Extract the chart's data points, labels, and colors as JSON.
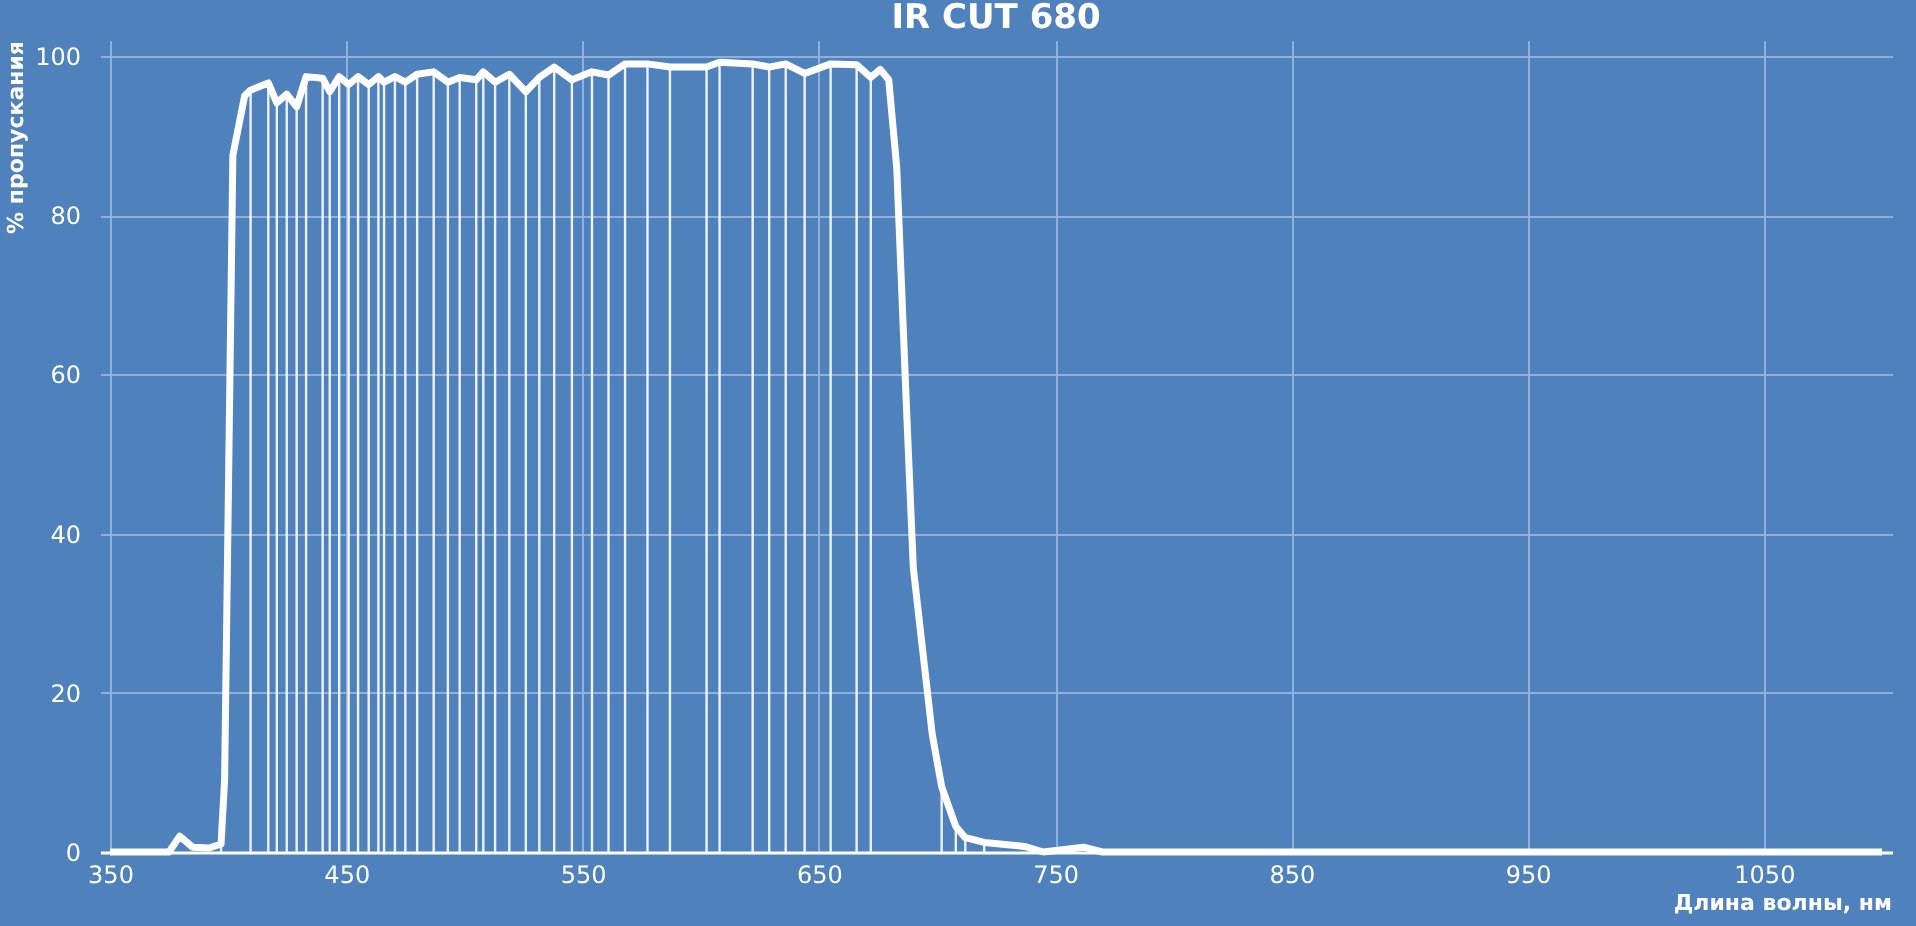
{
  "chart_data": {
    "type": "line",
    "title": "IR CUT 680",
    "xlabel": "Длина волны, нм",
    "ylabel": "% пропускания",
    "xlim": [
      350,
      1100
    ],
    "ylim": [
      0,
      102
    ],
    "xticks": [
      350,
      450,
      550,
      650,
      750,
      850,
      950,
      1050
    ],
    "yticks": [
      0,
      20,
      40,
      60,
      80,
      100
    ],
    "grid": true,
    "series": [
      {
        "type": "bar",
        "color": "#ffffff",
        "x": [
          397,
          409.5,
          417,
          420.6,
          424.8,
          429,
          433,
          440,
          443,
          447,
          451,
          455,
          459.5,
          463.6,
          466,
          470.6,
          475,
          480,
          487,
          493,
          498,
          505,
          508,
          513,
          519,
          526,
          531.7,
          538,
          545.5,
          554,
          561,
          568,
          577.5,
          587,
          602.5,
          608,
          622,
          629,
          636,
          644,
          655,
          666,
          672,
          702,
          708,
          712,
          720
        ],
        "values": [
          1,
          95.7,
          96.6,
          94.1,
          95.2,
          93.6,
          97.4,
          97.2,
          95.5,
          97.4,
          96.4,
          97.4,
          96.4,
          97.4,
          96.7,
          97.4,
          96.7,
          97.7,
          98,
          96.7,
          97.3,
          97,
          98,
          96.7,
          97.7,
          95.5,
          97.3,
          98.6,
          97,
          98,
          97.6,
          99,
          99,
          98.6,
          98.6,
          99.2,
          99,
          98.6,
          99,
          97.8,
          99,
          98.9,
          97.3,
          8.2,
          3.2,
          1.8,
          1.2
        ]
      },
      {
        "type": "line",
        "color": "#ffffff",
        "x": [
          350,
          375,
          379.5,
          385,
          392,
          397,
          398.5,
          402,
          407,
          409.5,
          417,
          420.6,
          424.8,
          429,
          433,
          440,
          443,
          447,
          451,
          455,
          459.5,
          463.6,
          466,
          470.6,
          475,
          480,
          487,
          493,
          498,
          505,
          508,
          513,
          519,
          526,
          531.7,
          538,
          545.5,
          554,
          561,
          568,
          577.5,
          587,
          602.5,
          608,
          622,
          629,
          636,
          644,
          655,
          666,
          672,
          676,
          679.6,
          683,
          687,
          690,
          698,
          702,
          708,
          712,
          720,
          737,
          745,
          762,
          770,
          1100
        ],
        "values": [
          0,
          0,
          2,
          0.6,
          0.5,
          1,
          9,
          87.5,
          95,
          95.7,
          96.6,
          94.1,
          95.2,
          93.6,
          97.4,
          97.2,
          95.5,
          97.4,
          96.4,
          97.4,
          96.4,
          97.4,
          96.7,
          97.4,
          96.7,
          97.7,
          98,
          96.7,
          97.3,
          97,
          98,
          96.7,
          97.7,
          95.5,
          97.3,
          98.6,
          97,
          98,
          97.6,
          99,
          99,
          98.6,
          98.6,
          99.2,
          99,
          98.6,
          99,
          97.8,
          99,
          98.9,
          97.3,
          98.3,
          97,
          85.9,
          56.6,
          35.7,
          14.8,
          8.2,
          3.2,
          1.8,
          1.2,
          0.7,
          0,
          0.6,
          0,
          0
        ]
      }
    ]
  }
}
